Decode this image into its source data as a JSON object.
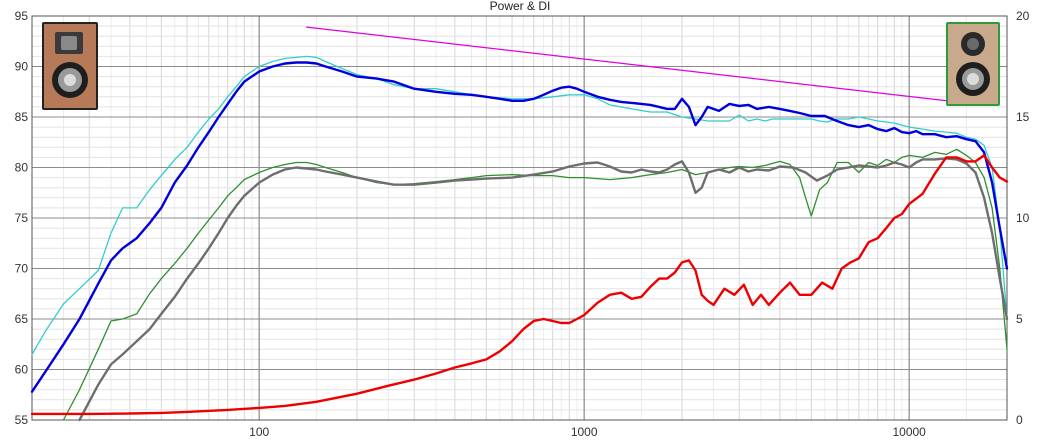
{
  "chart_data": {
    "type": "line",
    "title": "Power & DI",
    "xscale": "log",
    "xlim": [
      20,
      20000
    ],
    "ylim": [
      55,
      95
    ],
    "y2lim": [
      0,
      20
    ],
    "grid": true,
    "x_tick_labels": [
      {
        "value": 100,
        "label": "100"
      },
      {
        "value": 1000,
        "label": "1000"
      },
      {
        "value": 10000,
        "label": "10000"
      }
    ],
    "y_tick_labels": [
      {
        "value": 55,
        "label": "55"
      },
      {
        "value": 60,
        "label": "60"
      },
      {
        "value": 65,
        "label": "65"
      },
      {
        "value": 70,
        "label": "70"
      },
      {
        "value": 75,
        "label": "75"
      },
      {
        "value": 80,
        "label": "80"
      },
      {
        "value": 85,
        "label": "85"
      },
      {
        "value": 90,
        "label": "90"
      },
      {
        "value": 95,
        "label": "95"
      }
    ],
    "y2_tick_labels": [
      {
        "value": 0,
        "label": "0"
      },
      {
        "value": 5,
        "label": "5"
      },
      {
        "value": 10,
        "label": "10"
      },
      {
        "value": 15,
        "label": "15"
      },
      {
        "value": 20,
        "label": "20"
      }
    ],
    "series": [
      {
        "color": "#e000e0",
        "width": 1.2,
        "axis": "left",
        "x": [
          140,
          14000
        ],
        "y": [
          93.9,
          86.5
        ]
      },
      {
        "color": "#33cccc",
        "width": 1.3,
        "axis": "left",
        "x": [
          20,
          22,
          25,
          28,
          32,
          35,
          38,
          42,
          46,
          50,
          55,
          60,
          65,
          70,
          75,
          80,
          85,
          90,
          100,
          110,
          120,
          130,
          140,
          150,
          160,
          180,
          200,
          230,
          260,
          300,
          350,
          400,
          450,
          500,
          600,
          700,
          800,
          900,
          1000,
          1100,
          1200,
          1400,
          1600,
          1800,
          2000,
          2200,
          2400,
          2600,
          2800,
          3000,
          3200,
          3400,
          3600,
          3800,
          4000,
          4300,
          4600,
          5000,
          5300,
          5600,
          6000,
          6500,
          7000,
          7500,
          8000,
          8500,
          9000,
          9500,
          10000,
          11000,
          12000,
          13000,
          14000,
          15000,
          16000,
          17000,
          18000,
          19000,
          20000
        ],
        "y": [
          61.5,
          63.8,
          66.5,
          68.0,
          69.8,
          73.5,
          76.0,
          76.0,
          77.8,
          79.2,
          80.8,
          82.0,
          83.5,
          84.8,
          85.8,
          87.0,
          88.0,
          89.0,
          90.0,
          90.5,
          90.8,
          90.9,
          91.0,
          90.9,
          90.5,
          89.8,
          89.2,
          88.8,
          88.2,
          87.8,
          87.8,
          87.5,
          87.2,
          87.0,
          86.8,
          86.8,
          87.0,
          87.2,
          87.2,
          86.8,
          86.2,
          85.8,
          85.5,
          85.5,
          85.0,
          84.8,
          84.6,
          84.6,
          84.6,
          85.2,
          84.6,
          84.8,
          84.6,
          84.8,
          84.8,
          84.8,
          84.8,
          84.8,
          84.6,
          84.5,
          84.8,
          84.8,
          85.0,
          84.8,
          84.6,
          84.5,
          84.4,
          84.2,
          84.0,
          83.8,
          83.6,
          83.5,
          83.4,
          83.0,
          82.8,
          82.2,
          80.0,
          74.0,
          65.0
        ]
      },
      {
        "color": "#0000dd",
        "width": 2.4,
        "axis": "left",
        "x": [
          20,
          22,
          25,
          28,
          32,
          35,
          38,
          42,
          46,
          50,
          55,
          60,
          65,
          70,
          75,
          80,
          85,
          90,
          100,
          110,
          120,
          130,
          140,
          150,
          160,
          180,
          200,
          230,
          260,
          300,
          350,
          400,
          450,
          500,
          550,
          600,
          650,
          700,
          750,
          800,
          850,
          900,
          950,
          1000,
          1100,
          1200,
          1300,
          1400,
          1500,
          1600,
          1700,
          1800,
          1900,
          2000,
          2100,
          2200,
          2300,
          2400,
          2600,
          2800,
          3000,
          3200,
          3400,
          3700,
          4000,
          4300,
          4600,
          5000,
          5500,
          6000,
          6500,
          7000,
          7500,
          8000,
          8500,
          9000,
          9500,
          10000,
          10500,
          11000,
          12000,
          13000,
          14000,
          15000,
          16000,
          17000,
          18000,
          19000,
          20000
        ],
        "y": [
          57.8,
          59.8,
          62.5,
          65.0,
          68.5,
          70.8,
          72.0,
          73.0,
          74.5,
          76.0,
          78.5,
          80.2,
          82.0,
          83.5,
          85.0,
          86.3,
          87.5,
          88.5,
          89.5,
          90.0,
          90.3,
          90.4,
          90.4,
          90.3,
          90.0,
          89.5,
          89.0,
          88.8,
          88.5,
          87.8,
          87.5,
          87.3,
          87.2,
          87.0,
          86.8,
          86.6,
          86.6,
          86.8,
          87.2,
          87.6,
          87.9,
          88.0,
          87.8,
          87.5,
          87.0,
          86.7,
          86.5,
          86.4,
          86.3,
          86.2,
          86.0,
          85.8,
          85.8,
          86.8,
          86.0,
          84.2,
          85.0,
          86.0,
          85.6,
          86.3,
          86.1,
          86.2,
          85.8,
          86.0,
          85.8,
          85.6,
          85.4,
          85.1,
          85.1,
          84.6,
          84.2,
          84.0,
          84.2,
          83.8,
          83.6,
          83.9,
          83.5,
          83.4,
          83.6,
          83.3,
          83.3,
          83.0,
          83.1,
          82.8,
          82.6,
          81.5,
          78.5,
          74.0,
          70.0
        ]
      },
      {
        "color": "#2f8f2f",
        "width": 1.3,
        "axis": "left",
        "x": [
          25,
          28,
          32,
          35,
          38,
          42,
          46,
          50,
          55,
          60,
          65,
          70,
          75,
          80,
          85,
          90,
          100,
          110,
          120,
          130,
          140,
          150,
          160,
          180,
          200,
          230,
          260,
          300,
          350,
          400,
          450,
          500,
          600,
          700,
          800,
          900,
          1000,
          1200,
          1400,
          1600,
          1800,
          2000,
          2200,
          2400,
          2600,
          2800,
          3000,
          3300,
          3600,
          4000,
          4300,
          4600,
          4800,
          5000,
          5300,
          5600,
          6000,
          6500,
          7000,
          7500,
          8000,
          8500,
          9000,
          9500,
          10000,
          11000,
          12000,
          13000,
          14000,
          15000,
          16000,
          17000,
          18000,
          19000,
          20000
        ],
        "y": [
          55.0,
          58.0,
          62.0,
          64.8,
          65.0,
          65.5,
          67.5,
          69.0,
          70.5,
          72.0,
          73.5,
          74.8,
          76.0,
          77.2,
          78.0,
          78.8,
          79.5,
          80.0,
          80.3,
          80.5,
          80.5,
          80.3,
          80.0,
          79.5,
          79.0,
          78.5,
          78.3,
          78.4,
          78.6,
          78.8,
          79.0,
          79.2,
          79.3,
          79.2,
          79.2,
          79.0,
          79.0,
          78.8,
          79.0,
          79.3,
          79.5,
          79.8,
          79.3,
          79.5,
          79.8,
          80.0,
          80.1,
          80.0,
          80.2,
          80.6,
          80.3,
          79.0,
          77.0,
          75.2,
          77.8,
          78.5,
          80.5,
          80.5,
          79.5,
          80.5,
          80.2,
          80.8,
          80.5,
          81.0,
          81.2,
          81.0,
          81.5,
          81.3,
          81.8,
          81.2,
          80.5,
          79.0,
          76.0,
          70.0,
          62.0
        ]
      },
      {
        "color": "#6e6e6e",
        "width": 2.4,
        "axis": "left",
        "x": [
          28,
          32,
          35,
          38,
          42,
          46,
          50,
          55,
          60,
          65,
          70,
          75,
          80,
          85,
          90,
          100,
          110,
          120,
          130,
          140,
          150,
          160,
          180,
          200,
          230,
          260,
          300,
          350,
          400,
          450,
          500,
          600,
          700,
          800,
          900,
          1000,
          1100,
          1200,
          1300,
          1400,
          1500,
          1600,
          1700,
          1800,
          1900,
          2000,
          2100,
          2200,
          2300,
          2400,
          2600,
          2800,
          3000,
          3200,
          3400,
          3700,
          4000,
          4400,
          4800,
          5200,
          5600,
          6000,
          6500,
          7000,
          7500,
          8000,
          8500,
          9000,
          9500,
          10000,
          10500,
          11000,
          12000,
          13000,
          14000,
          15000,
          16000,
          17000,
          18000,
          19000,
          20000
        ],
        "y": [
          55.0,
          58.5,
          60.5,
          61.5,
          62.8,
          64.0,
          65.5,
          67.2,
          69.0,
          70.5,
          72.0,
          73.5,
          75.0,
          76.2,
          77.2,
          78.5,
          79.3,
          79.8,
          80.0,
          79.9,
          79.8,
          79.6,
          79.3,
          79.0,
          78.6,
          78.3,
          78.3,
          78.5,
          78.7,
          78.8,
          78.9,
          79.0,
          79.3,
          79.6,
          80.1,
          80.4,
          80.5,
          80.1,
          79.6,
          79.5,
          79.8,
          79.6,
          79.5,
          79.8,
          80.3,
          80.6,
          79.5,
          77.5,
          78.0,
          79.5,
          79.8,
          79.5,
          80.0,
          79.6,
          79.8,
          79.7,
          80.1,
          80.0,
          79.5,
          78.7,
          79.2,
          79.8,
          80.0,
          80.2,
          80.1,
          80.0,
          80.2,
          80.5,
          80.3,
          80.0,
          80.5,
          80.8,
          80.8,
          80.9,
          80.8,
          80.4,
          79.5,
          77.0,
          73.5,
          69.0,
          65.0
        ]
      },
      {
        "color": "#ee0000",
        "width": 2.4,
        "axis": "right",
        "x": [
          20,
          30,
          40,
          50,
          60,
          80,
          100,
          120,
          150,
          200,
          250,
          300,
          350,
          400,
          450,
          500,
          550,
          600,
          650,
          700,
          750,
          800,
          850,
          900,
          950,
          1000,
          1100,
          1200,
          1300,
          1400,
          1500,
          1600,
          1700,
          1800,
          1900,
          2000,
          2100,
          2200,
          2300,
          2400,
          2500,
          2700,
          2900,
          3100,
          3300,
          3500,
          3700,
          4000,
          4300,
          4600,
          5000,
          5400,
          5800,
          6200,
          6600,
          7000,
          7500,
          8000,
          8500,
          9000,
          9500,
          10000,
          11000,
          12000,
          13000,
          14000,
          15000,
          16000,
          17000,
          18000,
          19000,
          20000
        ],
        "y": [
          0.3,
          0.3,
          0.32,
          0.35,
          0.4,
          0.5,
          0.6,
          0.7,
          0.9,
          1.3,
          1.7,
          2.0,
          2.3,
          2.6,
          2.8,
          3.0,
          3.4,
          3.9,
          4.5,
          4.9,
          5.0,
          4.9,
          4.8,
          4.8,
          5.0,
          5.2,
          5.8,
          6.2,
          6.3,
          6.0,
          6.1,
          6.6,
          7.0,
          7.0,
          7.3,
          7.8,
          7.9,
          7.4,
          6.2,
          5.9,
          5.7,
          6.5,
          6.2,
          6.7,
          5.7,
          6.2,
          5.7,
          6.3,
          6.8,
          6.2,
          6.2,
          6.8,
          6.5,
          7.5,
          7.8,
          8.0,
          8.8,
          9.0,
          9.5,
          10.0,
          10.2,
          10.7,
          11.2,
          12.2,
          13.0,
          13.0,
          12.8,
          12.8,
          13.1,
          12.5,
          12.0,
          11.8
        ]
      }
    ]
  }
}
